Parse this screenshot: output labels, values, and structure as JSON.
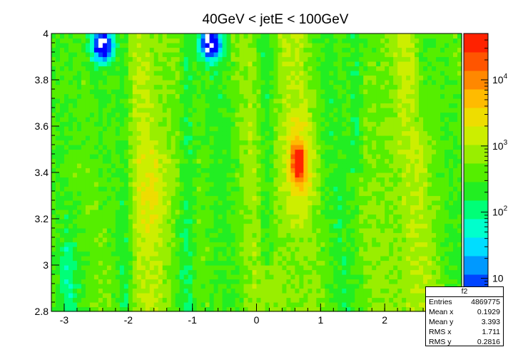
{
  "chart_data": {
    "type": "heatmap",
    "title": "40GeV < jetE < 100GeV",
    "xlabel": "",
    "ylabel": "",
    "xlim": [
      -3.2,
      3.2
    ],
    "ylim": [
      2.8,
      4.0
    ],
    "x_ticks": [
      "-3",
      "-2",
      "-1",
      "0",
      "1",
      "2"
    ],
    "y_ticks": [
      "2.8",
      "3",
      "3.2",
      "3.4",
      "3.6",
      "3.8",
      "4"
    ],
    "z_scale": "log",
    "z_ticks": [
      "10",
      "10^2",
      "10^3",
      "10^4"
    ],
    "colormap": [
      "#0000ff",
      "#0044ff",
      "#0099ff",
      "#00ddff",
      "#00ffcc",
      "#00ff77",
      "#22ee22",
      "#55ee00",
      "#99ee00",
      "#ccee00",
      "#eedd00",
      "#ffbb00",
      "#ff8800",
      "#ff5500",
      "#ff2200"
    ],
    "features": [
      {
        "x": 0.65,
        "y": 3.44,
        "peak_z": 30000
      },
      {
        "x": -2.4,
        "y": 3.95,
        "min_z": 5
      },
      {
        "x": -0.72,
        "y": 3.96,
        "min_z": 5
      }
    ],
    "grid": false,
    "legend": "none"
  },
  "stats": {
    "title": "f2",
    "rows": [
      {
        "label": "Entries",
        "value": "4869775"
      },
      {
        "label": "Mean x",
        "value": "0.1929"
      },
      {
        "label": "Mean y",
        "value": "3.393"
      },
      {
        "label": "RMS x",
        "value": "1.711"
      },
      {
        "label": "RMS y",
        "value": "0.2816"
      }
    ]
  }
}
